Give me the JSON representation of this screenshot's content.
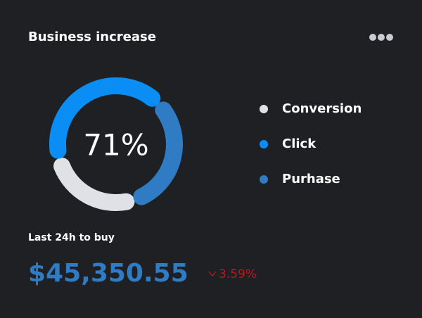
{
  "card": {
    "title": "Business increase",
    "subtitle": "Last 24h to buy",
    "amount": "$45,350.55",
    "change": "3.59%"
  },
  "chart_data": {
    "type": "pie",
    "donut": true,
    "center_label": "71%",
    "categories": [
      "Conversion",
      "Click",
      "Purhase"
    ],
    "values": [
      25,
      43,
      32
    ],
    "colors": [
      "#dfe1e6",
      "#0a8ef5",
      "#2f7bc4"
    ]
  }
}
